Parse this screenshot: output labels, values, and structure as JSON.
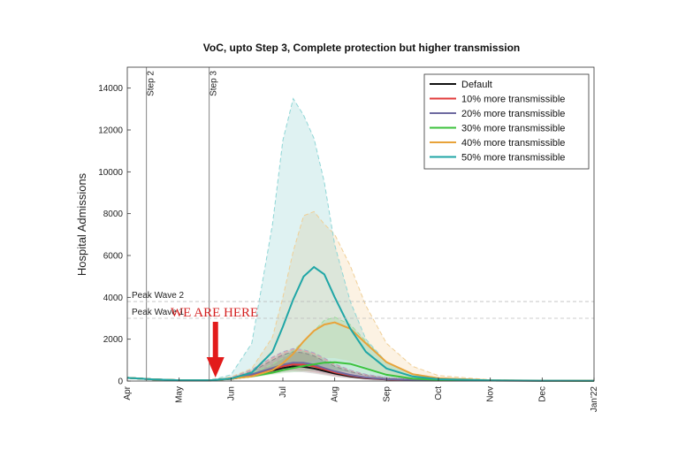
{
  "chart_data": {
    "type": "line",
    "title": "VoC, upto Step 3, Complete protection but higher transmission",
    "xlabel": "",
    "ylabel": "Hospital Admissions",
    "xlim": [
      0,
      9
    ],
    "ylim": [
      0,
      15000
    ],
    "x_tick_labels": [
      "Apr",
      "May",
      "Jun",
      "Jul",
      "Aug",
      "Sep",
      "Oct",
      "Nov",
      "Dec",
      "Jan'22"
    ],
    "y_ticks": [
      0,
      2000,
      4000,
      6000,
      8000,
      10000,
      12000,
      14000
    ],
    "grid": false,
    "legend_position": "top-right",
    "x_note": "x values are months since 1 Apr 2021",
    "vlines": [
      {
        "x": 0.37,
        "label": "Step 2"
      },
      {
        "x": 1.58,
        "label": "Step 3"
      }
    ],
    "hlines": [
      {
        "y": 3800,
        "label": "Peak Wave 2"
      },
      {
        "y": 3000,
        "label": "Peak Wave 1"
      }
    ],
    "annotation": {
      "text": "WE ARE HERE",
      "x": 1.7,
      "arrow_to_y": 0
    },
    "series": [
      {
        "name": "Default",
        "color": "#111111",
        "dashed_color": "#8a8a8a",
        "x": [
          0,
          0.5,
          1.0,
          1.6,
          2.0,
          2.4,
          2.8,
          3.0,
          3.2,
          3.4,
          3.6,
          3.8,
          4.0,
          4.3,
          4.6,
          5.0,
          5.5,
          6.0,
          7.0,
          8.0,
          9.0
        ],
        "y": [
          150,
          80,
          40,
          40,
          100,
          250,
          500,
          620,
          700,
          680,
          600,
          480,
          360,
          220,
          130,
          70,
          40,
          30,
          20,
          15,
          10
        ],
        "band_lower": [
          150,
          80,
          40,
          40,
          80,
          180,
          350,
          420,
          450,
          420,
          360,
          280,
          200,
          120,
          70,
          40,
          25,
          20,
          15,
          10,
          8
        ],
        "band_upper": [
          150,
          80,
          40,
          40,
          150,
          450,
          1000,
          1250,
          1400,
          1350,
          1200,
          950,
          700,
          450,
          270,
          150,
          80,
          50,
          30,
          20,
          15
        ]
      },
      {
        "name": "10% more transmissible",
        "color": "#e23b3b",
        "dashed_color": "#e8a0a0",
        "x": [
          0,
          0.5,
          1.0,
          1.6,
          2.0,
          2.4,
          2.8,
          3.0,
          3.2,
          3.4,
          3.6,
          3.8,
          4.0,
          4.3,
          4.6,
          5.0,
          5.5,
          6.0,
          7.0,
          8.0,
          9.0
        ],
        "y": [
          150,
          80,
          40,
          40,
          110,
          280,
          560,
          700,
          800,
          780,
          700,
          560,
          420,
          260,
          150,
          80,
          45,
          30,
          20,
          15,
          10
        ],
        "band_lower": [
          150,
          80,
          40,
          40,
          90,
          200,
          390,
          470,
          510,
          480,
          410,
          320,
          230,
          140,
          80,
          45,
          28,
          20,
          15,
          10,
          8
        ],
        "band_upper": [
          150,
          80,
          40,
          40,
          170,
          500,
          1100,
          1350,
          1500,
          1450,
          1300,
          1050,
          780,
          500,
          300,
          160,
          90,
          55,
          30,
          20,
          15
        ]
      },
      {
        "name": "20% more transmissible",
        "color": "#6e6aa0",
        "dashed_color": "#a9a6c8",
        "x": [
          0,
          0.5,
          1.0,
          1.6,
          2.0,
          2.4,
          2.8,
          3.0,
          3.2,
          3.4,
          3.6,
          3.8,
          4.0,
          4.3,
          4.6,
          5.0,
          5.5,
          6.0,
          7.0,
          8.0,
          9.0
        ],
        "y": [
          150,
          80,
          40,
          40,
          120,
          320,
          620,
          780,
          880,
          870,
          780,
          620,
          470,
          290,
          170,
          90,
          50,
          35,
          20,
          15,
          10
        ],
        "band_lower": [
          150,
          80,
          40,
          40,
          100,
          220,
          420,
          510,
          560,
          530,
          460,
          360,
          260,
          160,
          90,
          50,
          30,
          22,
          15,
          10,
          8
        ],
        "band_upper": [
          150,
          80,
          40,
          40,
          180,
          540,
          1150,
          1400,
          1550,
          1500,
          1350,
          1100,
          820,
          520,
          320,
          170,
          95,
          60,
          30,
          20,
          15
        ]
      },
      {
        "name": "30% more transmissible",
        "color": "#3cc23c",
        "dashed_color": "#9edc9e",
        "x": [
          0,
          0.5,
          1.0,
          1.6,
          2.0,
          2.4,
          2.8,
          3.0,
          3.2,
          3.4,
          3.6,
          3.8,
          4.0,
          4.3,
          4.6,
          5.0,
          5.5,
          6.0,
          7.0,
          8.0,
          9.0
        ],
        "y": [
          150,
          80,
          40,
          40,
          110,
          220,
          400,
          520,
          620,
          720,
          800,
          880,
          900,
          820,
          600,
          300,
          120,
          60,
          25,
          15,
          10
        ],
        "band_lower": [
          150,
          80,
          40,
          40,
          90,
          170,
          300,
          370,
          420,
          470,
          500,
          520,
          500,
          430,
          310,
          160,
          70,
          35,
          15,
          10,
          8
        ],
        "band_upper": [
          150,
          80,
          40,
          40,
          140,
          380,
          800,
          1100,
          1450,
          1900,
          2400,
          2900,
          3050,
          2700,
          1900,
          900,
          320,
          130,
          40,
          20,
          15
        ]
      },
      {
        "name": "40% more transmissible",
        "color": "#e8a33a",
        "dashed_color": "#f0cf96",
        "x": [
          0,
          0.5,
          1.0,
          1.6,
          2.0,
          2.4,
          2.8,
          3.0,
          3.2,
          3.4,
          3.6,
          3.8,
          4.0,
          4.3,
          4.6,
          5.0,
          5.5,
          6.0,
          7.0,
          8.0,
          9.0
        ],
        "y": [
          150,
          80,
          40,
          40,
          110,
          220,
          520,
          850,
          1300,
          1900,
          2400,
          2700,
          2800,
          2500,
          1800,
          900,
          330,
          130,
          40,
          20,
          12
        ],
        "band_lower": [
          150,
          80,
          40,
          40,
          90,
          170,
          330,
          480,
          650,
          850,
          1000,
          1100,
          1100,
          950,
          680,
          340,
          130,
          55,
          20,
          12,
          8
        ],
        "band_upper": [
          150,
          80,
          40,
          40,
          200,
          600,
          2100,
          4000,
          6200,
          7900,
          8100,
          7500,
          7000,
          5500,
          3600,
          1800,
          700,
          260,
          60,
          25,
          15
        ]
      },
      {
        "name": "50% more transmissible",
        "color": "#1fa6a6",
        "dashed_color": "#8fd6d6",
        "x": [
          0,
          0.5,
          1.0,
          1.6,
          2.0,
          2.4,
          2.8,
          3.0,
          3.2,
          3.4,
          3.6,
          3.8,
          4.0,
          4.3,
          4.6,
          5.0,
          5.5,
          6.0,
          7.0,
          8.0,
          9.0
        ],
        "y": [
          150,
          80,
          40,
          40,
          120,
          400,
          1400,
          2600,
          3900,
          5000,
          5450,
          5100,
          4000,
          2500,
          1400,
          600,
          220,
          90,
          30,
          15,
          10
        ],
        "band_lower": [
          150,
          80,
          40,
          40,
          90,
          200,
          400,
          600,
          750,
          820,
          800,
          700,
          550,
          380,
          240,
          120,
          55,
          28,
          12,
          8,
          6
        ],
        "band_upper": [
          150,
          80,
          40,
          40,
          300,
          1800,
          7500,
          11500,
          13500,
          12700,
          11600,
          9500,
          6500,
          3800,
          2000,
          900,
          350,
          150,
          45,
          20,
          12
        ]
      }
    ]
  }
}
